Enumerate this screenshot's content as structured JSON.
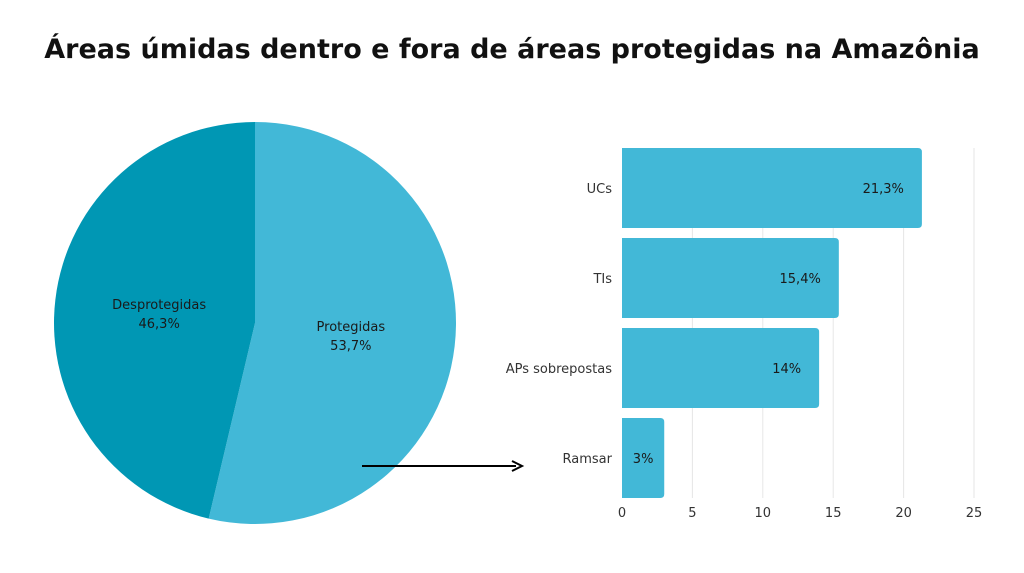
{
  "title": "Áreas úmidas dentro e fora de áreas protegidas na Amazônia",
  "colors": {
    "light": "#42b8d7",
    "dark": "#0097b4",
    "grid": "#e6e6e6",
    "text": "#222222"
  },
  "chart_data": [
    {
      "type": "pie",
      "slices": [
        {
          "label": "Protegidas",
          "value": 53.7,
          "display": "53,7%",
          "color": "#42b8d7"
        },
        {
          "label": "Desprotegidas",
          "value": 46.3,
          "display": "46,3%",
          "color": "#0097b4"
        }
      ]
    },
    {
      "type": "bar",
      "orientation": "horizontal",
      "categories": [
        "UCs",
        "TIs",
        "APs sobrepostas",
        "Ramsar"
      ],
      "values": [
        21.3,
        15.4,
        14,
        3
      ],
      "labels": [
        "21,3%",
        "15,4%",
        "14%",
        "3%"
      ],
      "xlim": [
        0,
        25
      ],
      "xticks": [
        "0",
        "5",
        "10",
        "15",
        "20",
        "25"
      ],
      "grid": true
    }
  ]
}
